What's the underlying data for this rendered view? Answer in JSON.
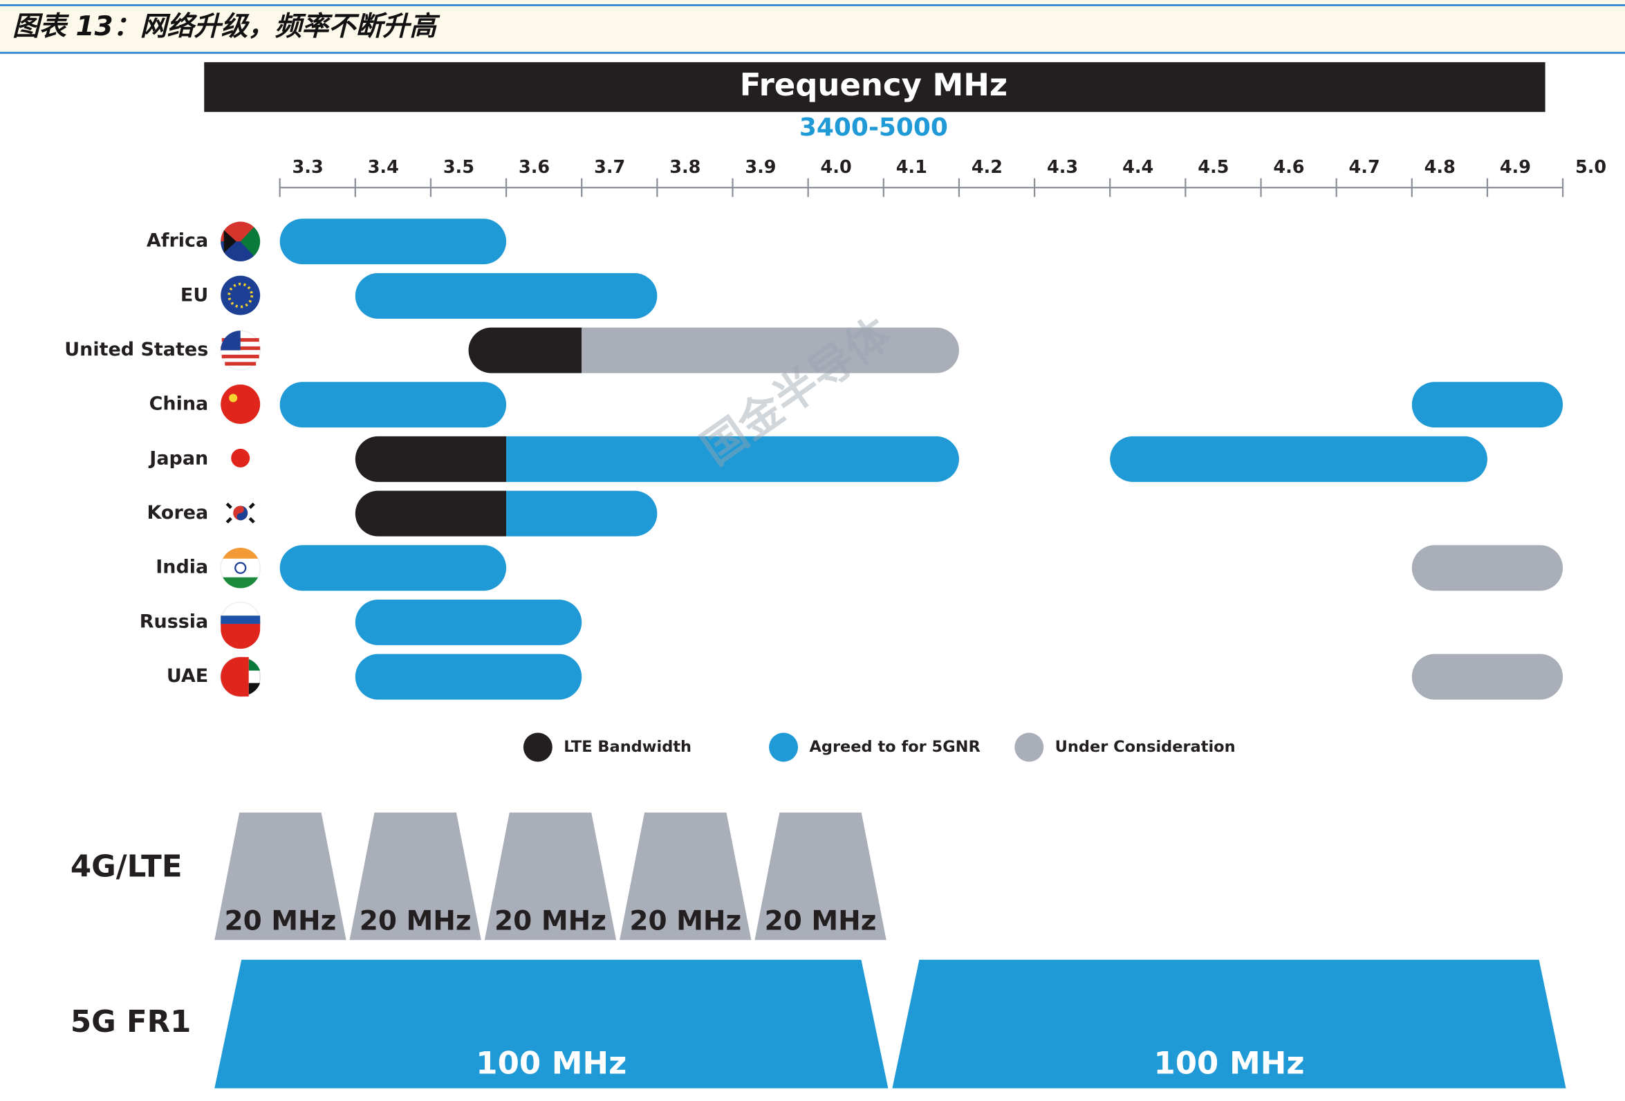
{
  "header": "图表 13：网络升级，频率不断升高",
  "watermark": "国金半导体",
  "chart_data": {
    "type": "range_bar",
    "title": "Frequency MHz",
    "subtitle": "3400-5000",
    "categories": [
      "Africa",
      "EU",
      "United States",
      "China",
      "Japan",
      "Korea",
      "India",
      "Russia",
      "UAE"
    ],
    "xlim": [
      3.3,
      5.0
    ],
    "xticks": [
      3.3,
      3.4,
      3.5,
      3.6,
      3.7,
      3.8,
      3.9,
      {
        "value": 4,
        "label": "4.0"
      },
      4.1,
      4.2,
      4.3,
      4.4,
      4.5,
      4.6,
      4.7,
      4.8,
      4.9,
      {
        "value": 5,
        "label": "5.0"
      }
    ],
    "legend": "bottom",
    "series": [
      {
        "name": "LTE Bandwidth",
        "color": "#231f20",
        "values": [
          null,
          null,
          [
            [
              3.55,
              3.7
            ]
          ],
          null,
          [
            [
              3.4,
              3.6
            ]
          ],
          [
            [
              3.4,
              3.6
            ]
          ],
          null,
          null,
          null
        ]
      },
      {
        "name": "Agreed to for 5GNR",
        "color": "#1f9ad6",
        "values": [
          [
            [
              3.3,
              3.6
            ]
          ],
          [
            [
              3.4,
              3.8
            ]
          ],
          null,
          [
            [
              3.3,
              3.6
            ],
            [
              4.8,
              5.0
            ]
          ],
          [
            [
              3.6,
              4.2
            ],
            [
              4.4,
              4.9
            ]
          ],
          [
            [
              3.6,
              3.8
            ]
          ],
          [
            [
              3.3,
              3.6
            ]
          ],
          [
            [
              3.4,
              3.7
            ]
          ],
          [
            [
              3.4,
              3.7
            ]
          ]
        ]
      },
      {
        "name": "Under Consideration",
        "color": "#a9aeb9",
        "values": [
          null,
          null,
          [
            [
              3.7,
              4.2
            ]
          ],
          null,
          null,
          null,
          [
            [
              4.8,
              5.0
            ]
          ],
          null,
          [
            [
              4.8,
              5.0
            ]
          ]
        ]
      }
    ]
  },
  "diagram": {
    "rows": [
      {
        "label": "4G/LTE",
        "blocks": [
          "20 MHz",
          "20 MHz",
          "20 MHz",
          "20 MHz",
          "20 MHz"
        ]
      },
      {
        "label": "5G FR1",
        "blocks": [
          "100 MHz",
          "100 MHz"
        ]
      }
    ]
  }
}
